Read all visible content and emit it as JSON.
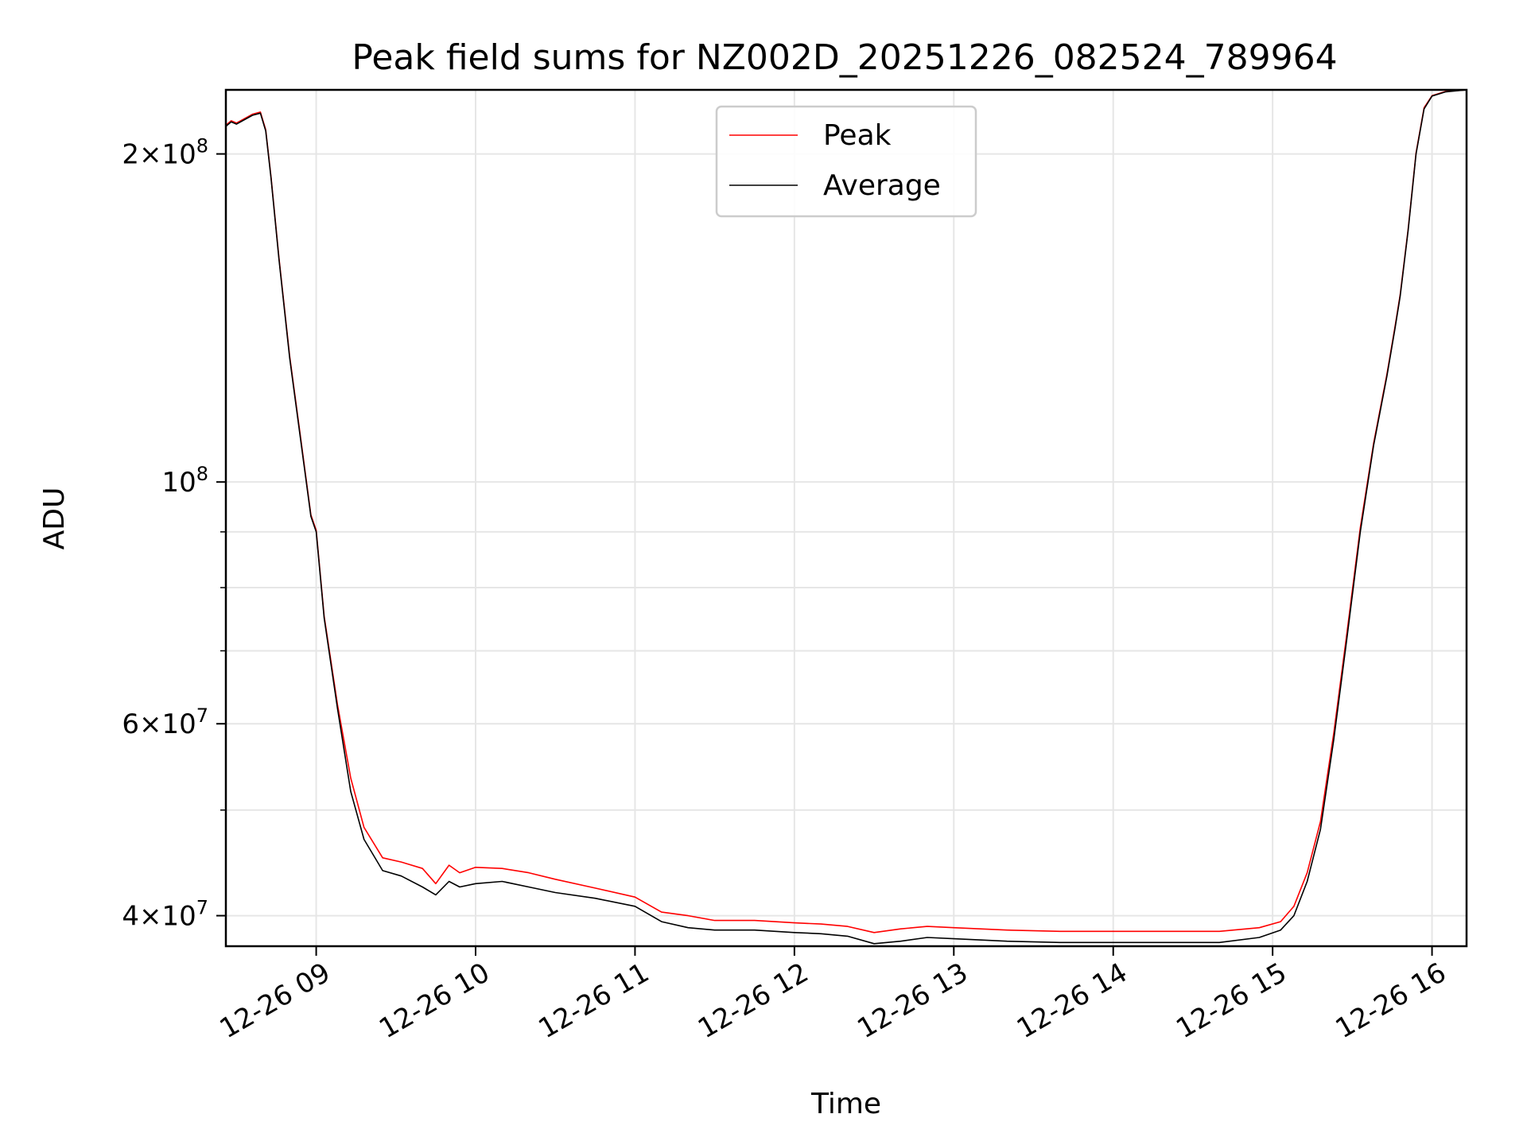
{
  "chart_data": {
    "type": "line",
    "title": "Peak field sums for NZ002D_20251226_082524_789964",
    "xlabel": "Time",
    "ylabel": "ADU",
    "yscale": "log",
    "xlim": [
      "2025-12-26 08:26",
      "2025-12-26 16:13"
    ],
    "ylim": [
      37500000,
      229000000
    ],
    "grid": true,
    "legend_position": "top-center",
    "x_ticks": [
      {
        "value": "2025-12-26 09:00",
        "label": "12-26 09"
      },
      {
        "value": "2025-12-26 10:00",
        "label": "12-26 10"
      },
      {
        "value": "2025-12-26 11:00",
        "label": "12-26 11"
      },
      {
        "value": "2025-12-26 12:00",
        "label": "12-26 12"
      },
      {
        "value": "2025-12-26 13:00",
        "label": "12-26 13"
      },
      {
        "value": "2025-12-26 14:00",
        "label": "12-26 14"
      },
      {
        "value": "2025-12-26 15:00",
        "label": "12-26 15"
      },
      {
        "value": "2025-12-26 16:00",
        "label": "12-26 16"
      }
    ],
    "y_major_ticks": [
      {
        "value": 40000000,
        "mantissa": "4",
        "exp": "7"
      },
      {
        "value": 60000000,
        "mantissa": "6",
        "exp": "7"
      },
      {
        "value": 100000000,
        "mantissa": "",
        "exp": "8"
      },
      {
        "value": 200000000,
        "mantissa": "2",
        "exp": "8"
      }
    ],
    "y_minor_ticks": [
      50000000,
      70000000,
      80000000,
      90000000
    ],
    "series": [
      {
        "name": "Average",
        "color": "#000000",
        "x": [
          "2025-12-26 08:26",
          "2025-12-26 08:28",
          "2025-12-26 08:30",
          "2025-12-26 08:33",
          "2025-12-26 08:36",
          "2025-12-26 08:39",
          "2025-12-26 08:41",
          "2025-12-26 08:43",
          "2025-12-26 08:46",
          "2025-12-26 08:50",
          "2025-12-26 08:54",
          "2025-12-26 08:58",
          "2025-12-26 09:00",
          "2025-12-26 09:03",
          "2025-12-26 09:08",
          "2025-12-26 09:13",
          "2025-12-26 09:18",
          "2025-12-26 09:25",
          "2025-12-26 09:32",
          "2025-12-26 09:40",
          "2025-12-26 09:45",
          "2025-12-26 09:50",
          "2025-12-26 09:54",
          "2025-12-26 10:00",
          "2025-12-26 10:10",
          "2025-12-26 10:20",
          "2025-12-26 10:30",
          "2025-12-26 10:45",
          "2025-12-26 11:00",
          "2025-12-26 11:10",
          "2025-12-26 11:20",
          "2025-12-26 11:30",
          "2025-12-26 11:45",
          "2025-12-26 12:00",
          "2025-12-26 12:10",
          "2025-12-26 12:20",
          "2025-12-26 12:30",
          "2025-12-26 12:40",
          "2025-12-26 12:50",
          "2025-12-26 13:00",
          "2025-12-26 13:20",
          "2025-12-26 13:40",
          "2025-12-26 14:00",
          "2025-12-26 14:20",
          "2025-12-26 14:40",
          "2025-12-26 14:55",
          "2025-12-26 15:03",
          "2025-12-26 15:08",
          "2025-12-26 15:13",
          "2025-12-26 15:18",
          "2025-12-26 15:23",
          "2025-12-26 15:28",
          "2025-12-26 15:33",
          "2025-12-26 15:38",
          "2025-12-26 15:43",
          "2025-12-26 15:46",
          "2025-12-26 15:48",
          "2025-12-26 15:51",
          "2025-12-26 15:54",
          "2025-12-26 15:57",
          "2025-12-26 16:00",
          "2025-12-26 16:05",
          "2025-12-26 16:13"
        ],
        "y": [
          212000000,
          214000000,
          213000000,
          215000000,
          217000000,
          218000000,
          210000000,
          190000000,
          160000000,
          130000000,
          110000000,
          93000000,
          90000000,
          75000000,
          62000000,
          52000000,
          47000000,
          44000000,
          43500000,
          42500000,
          41800000,
          43000000,
          42500000,
          42800000,
          43000000,
          42500000,
          42000000,
          41500000,
          40800000,
          39500000,
          39000000,
          38800000,
          38800000,
          38600000,
          38500000,
          38300000,
          37700000,
          37900000,
          38200000,
          38100000,
          37900000,
          37800000,
          37800000,
          37800000,
          37800000,
          38200000,
          38800000,
          40000000,
          43000000,
          48000000,
          58000000,
          72000000,
          90000000,
          108000000,
          125000000,
          138000000,
          148000000,
          170000000,
          200000000,
          220000000,
          226000000,
          228000000,
          229000000
        ]
      },
      {
        "name": "Peak",
        "color": "#ff0000",
        "x": [
          "2025-12-26 08:26",
          "2025-12-26 08:28",
          "2025-12-26 08:30",
          "2025-12-26 08:33",
          "2025-12-26 08:36",
          "2025-12-26 08:39",
          "2025-12-26 08:41",
          "2025-12-26 08:43",
          "2025-12-26 08:46",
          "2025-12-26 08:50",
          "2025-12-26 08:54",
          "2025-12-26 08:58",
          "2025-12-26 09:00",
          "2025-12-26 09:03",
          "2025-12-26 09:08",
          "2025-12-26 09:13",
          "2025-12-26 09:18",
          "2025-12-26 09:25",
          "2025-12-26 09:32",
          "2025-12-26 09:40",
          "2025-12-26 09:45",
          "2025-12-26 09:50",
          "2025-12-26 09:54",
          "2025-12-26 10:00",
          "2025-12-26 10:10",
          "2025-12-26 10:20",
          "2025-12-26 10:30",
          "2025-12-26 10:45",
          "2025-12-26 11:00",
          "2025-12-26 11:10",
          "2025-12-26 11:20",
          "2025-12-26 11:30",
          "2025-12-26 11:45",
          "2025-12-26 12:00",
          "2025-12-26 12:10",
          "2025-12-26 12:20",
          "2025-12-26 12:30",
          "2025-12-26 12:40",
          "2025-12-26 12:50",
          "2025-12-26 13:00",
          "2025-12-26 13:20",
          "2025-12-26 13:40",
          "2025-12-26 14:00",
          "2025-12-26 14:20",
          "2025-12-26 14:40",
          "2025-12-26 14:55",
          "2025-12-26 15:03",
          "2025-12-26 15:08",
          "2025-12-26 15:13",
          "2025-12-26 15:18",
          "2025-12-26 15:23",
          "2025-12-26 15:28",
          "2025-12-26 15:33",
          "2025-12-26 15:38",
          "2025-12-26 15:43",
          "2025-12-26 15:46",
          "2025-12-26 15:48",
          "2025-12-26 15:51",
          "2025-12-26 15:54",
          "2025-12-26 15:57",
          "2025-12-26 16:00",
          "2025-12-26 16:05",
          "2025-12-26 16:13"
        ],
        "y": [
          212500000,
          214500000,
          213500000,
          215500000,
          217500000,
          218500000,
          210500000,
          190500000,
          160500000,
          130500000,
          110500000,
          93300000,
          90300000,
          75300000,
          62500000,
          53500000,
          48200000,
          45200000,
          44800000,
          44200000,
          42800000,
          44500000,
          43800000,
          44300000,
          44200000,
          43800000,
          43200000,
          42400000,
          41600000,
          40300000,
          40000000,
          39600000,
          39600000,
          39400000,
          39300000,
          39100000,
          38600000,
          38900000,
          39100000,
          39000000,
          38800000,
          38700000,
          38700000,
          38700000,
          38700000,
          39000000,
          39500000,
          40800000,
          43800000,
          48800000,
          58800000,
          72800000,
          90800000,
          108500000,
          125500000,
          138500000,
          148500000,
          170500000,
          200500000,
          220500000,
          226200000,
          228200000,
          229000000
        ]
      }
    ],
    "legend": [
      {
        "name": "Peak",
        "color": "#ff0000"
      },
      {
        "name": "Average",
        "color": "#000000"
      }
    ]
  }
}
